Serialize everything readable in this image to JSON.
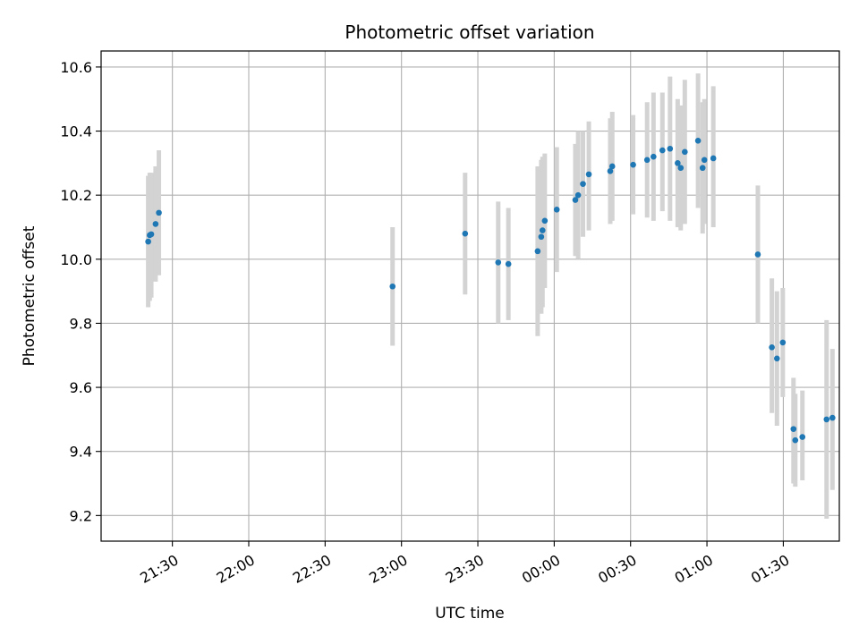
{
  "chart_data": {
    "type": "scatter",
    "title": "Photometric offset variation",
    "xlabel": "UTC time",
    "ylabel": "Photometric offset",
    "x_unit": "minutes",
    "xlim": [
      -28,
      262
    ],
    "ylim": [
      9.12,
      10.65
    ],
    "grid": true,
    "x_ticks": [
      {
        "value": 0,
        "label": "21:30"
      },
      {
        "value": 30,
        "label": "22:00"
      },
      {
        "value": 60,
        "label": "22:30"
      },
      {
        "value": 90,
        "label": "23:00"
      },
      {
        "value": 120,
        "label": "23:30"
      },
      {
        "value": 150,
        "label": "00:00"
      },
      {
        "value": 180,
        "label": "00:30"
      },
      {
        "value": 210,
        "label": "01:00"
      },
      {
        "value": 240,
        "label": "01:30"
      }
    ],
    "y_ticks": [
      {
        "value": 9.2,
        "label": "9.2"
      },
      {
        "value": 9.4,
        "label": "9.4"
      },
      {
        "value": 9.6,
        "label": "9.6"
      },
      {
        "value": 9.8,
        "label": "9.8"
      },
      {
        "value": 10.0,
        "label": "10.0"
      },
      {
        "value": 10.2,
        "label": "10.2"
      },
      {
        "value": 10.4,
        "label": "10.4"
      },
      {
        "value": 10.6,
        "label": "10.6"
      }
    ],
    "series": [
      {
        "color": "#1f77b4",
        "error_color": "#d3d3d3",
        "points": [
          {
            "x": -9.5,
            "y": 10.055,
            "ylo": 9.85,
            "yhi": 10.26
          },
          {
            "x": -8.9,
            "y": 10.075,
            "ylo": 9.87,
            "yhi": 10.27
          },
          {
            "x": -8.3,
            "y": 10.078,
            "ylo": 9.88,
            "yhi": 10.27
          },
          {
            "x": -6.6,
            "y": 10.11,
            "ylo": 9.93,
            "yhi": 10.29
          },
          {
            "x": -5.3,
            "y": 10.145,
            "ylo": 9.95,
            "yhi": 10.34
          },
          {
            "x": 86.5,
            "y": 9.915,
            "ylo": 9.73,
            "yhi": 10.1
          },
          {
            "x": 115,
            "y": 10.08,
            "ylo": 9.89,
            "yhi": 10.27
          },
          {
            "x": 128,
            "y": 9.99,
            "ylo": 9.8,
            "yhi": 10.18
          },
          {
            "x": 132,
            "y": 9.985,
            "ylo": 9.81,
            "yhi": 10.16
          },
          {
            "x": 143.5,
            "y": 10.025,
            "ylo": 9.76,
            "yhi": 10.29
          },
          {
            "x": 144.9,
            "y": 10.07,
            "ylo": 9.83,
            "yhi": 10.31
          },
          {
            "x": 145.4,
            "y": 10.09,
            "ylo": 9.85,
            "yhi": 10.32
          },
          {
            "x": 146.3,
            "y": 10.12,
            "ylo": 9.91,
            "yhi": 10.33
          },
          {
            "x": 151,
            "y": 10.155,
            "ylo": 9.96,
            "yhi": 10.35
          },
          {
            "x": 158.3,
            "y": 10.185,
            "ylo": 10.01,
            "yhi": 10.36
          },
          {
            "x": 159.4,
            "y": 10.2,
            "ylo": 10.0,
            "yhi": 10.4
          },
          {
            "x": 161.3,
            "y": 10.235,
            "ylo": 10.07,
            "yhi": 10.4
          },
          {
            "x": 163.6,
            "y": 10.265,
            "ylo": 10.09,
            "yhi": 10.43
          },
          {
            "x": 172,
            "y": 10.275,
            "ylo": 10.11,
            "yhi": 10.44
          },
          {
            "x": 172.8,
            "y": 10.29,
            "ylo": 10.12,
            "yhi": 10.46
          },
          {
            "x": 181,
            "y": 10.295,
            "ylo": 10.14,
            "yhi": 10.45
          },
          {
            "x": 186.5,
            "y": 10.31,
            "ylo": 10.13,
            "yhi": 10.49
          },
          {
            "x": 189,
            "y": 10.32,
            "ylo": 10.12,
            "yhi": 10.52
          },
          {
            "x": 192.5,
            "y": 10.34,
            "ylo": 10.15,
            "yhi": 10.52
          },
          {
            "x": 195.5,
            "y": 10.345,
            "ylo": 10.12,
            "yhi": 10.57
          },
          {
            "x": 198.5,
            "y": 10.3,
            "ylo": 10.1,
            "yhi": 10.5
          },
          {
            "x": 199.7,
            "y": 10.285,
            "ylo": 10.09,
            "yhi": 10.48
          },
          {
            "x": 201.3,
            "y": 10.335,
            "ylo": 10.11,
            "yhi": 10.56
          },
          {
            "x": 206.5,
            "y": 10.37,
            "ylo": 10.16,
            "yhi": 10.58
          },
          {
            "x": 208.3,
            "y": 10.285,
            "ylo": 10.08,
            "yhi": 10.49
          },
          {
            "x": 209,
            "y": 10.31,
            "ylo": 10.11,
            "yhi": 10.5
          },
          {
            "x": 212.5,
            "y": 10.315,
            "ylo": 10.1,
            "yhi": 10.54
          },
          {
            "x": 230,
            "y": 10.015,
            "ylo": 9.8,
            "yhi": 10.23
          },
          {
            "x": 235.5,
            "y": 9.725,
            "ylo": 9.52,
            "yhi": 9.94
          },
          {
            "x": 237.5,
            "y": 9.69,
            "ylo": 9.48,
            "yhi": 9.9
          },
          {
            "x": 239.8,
            "y": 9.74,
            "ylo": 9.57,
            "yhi": 9.91
          },
          {
            "x": 244,
            "y": 9.47,
            "ylo": 9.3,
            "yhi": 9.63
          },
          {
            "x": 244.7,
            "y": 9.435,
            "ylo": 9.29,
            "yhi": 9.58
          },
          {
            "x": 247.5,
            "y": 9.445,
            "ylo": 9.31,
            "yhi": 9.59
          },
          {
            "x": 257,
            "y": 9.5,
            "ylo": 9.19,
            "yhi": 9.81
          },
          {
            "x": 259.3,
            "y": 9.505,
            "ylo": 9.28,
            "yhi": 9.72
          }
        ]
      }
    ]
  }
}
